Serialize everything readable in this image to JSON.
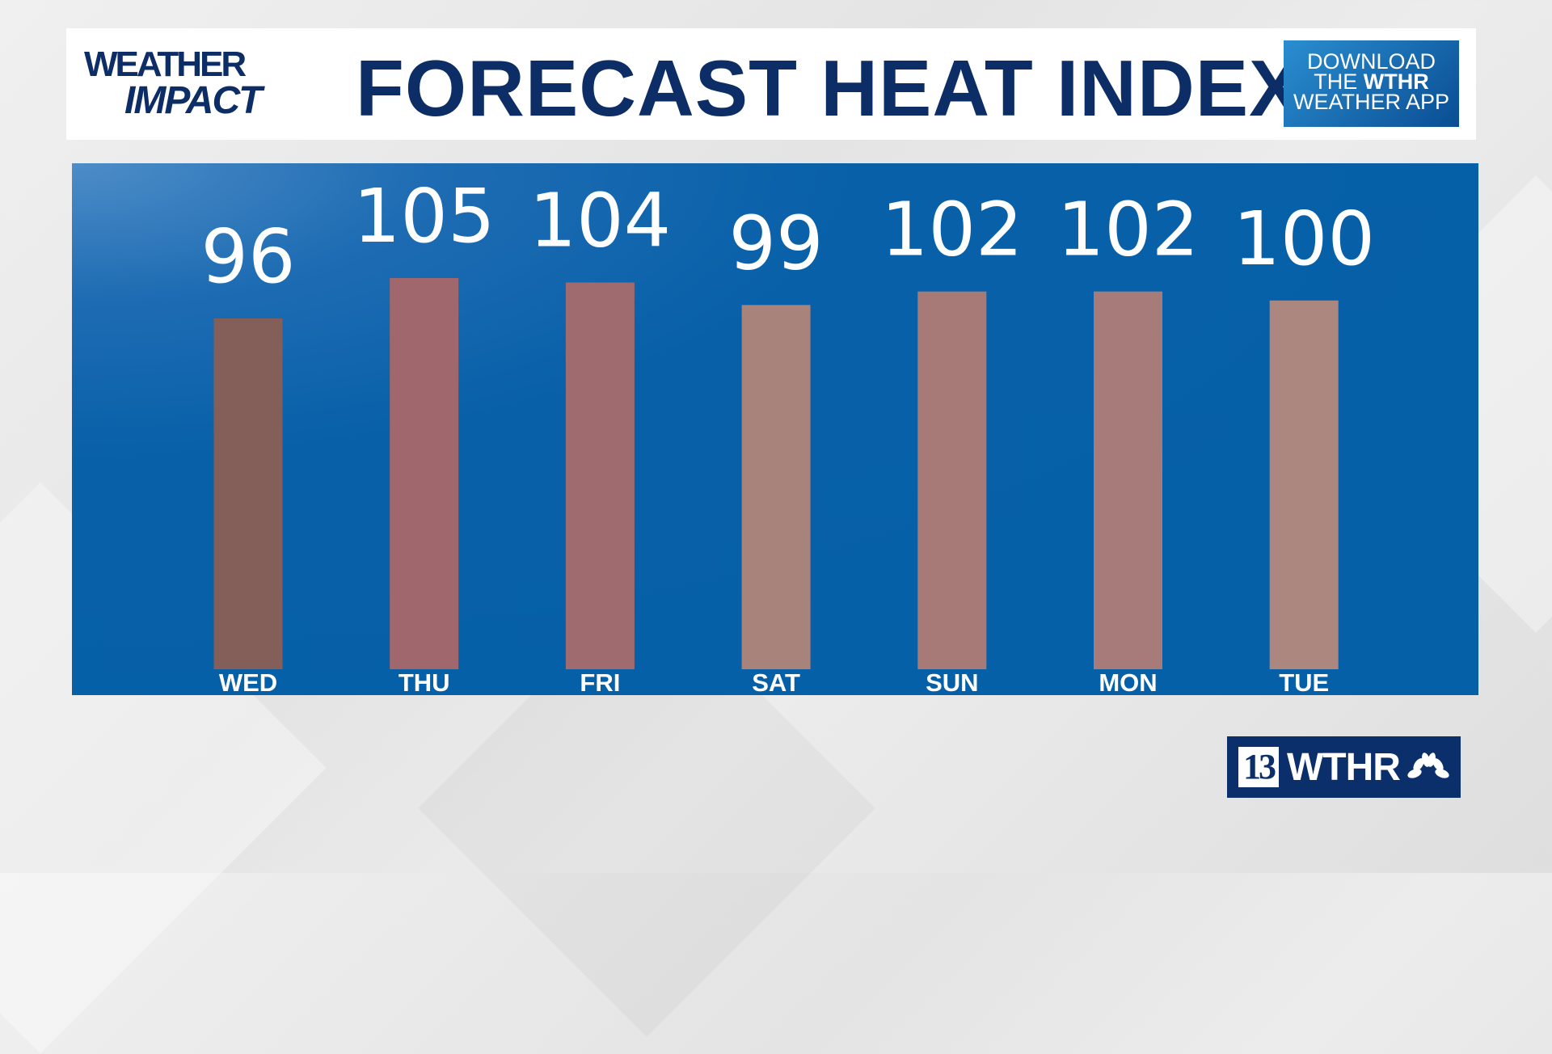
{
  "header": {
    "logo_line1": "WEATHER",
    "logo_line2": "IMPACT",
    "title": "FORECAST HEAT INDEX",
    "download": {
      "line1": "DOWNLOAD",
      "line2a": "THE ",
      "line2b": "WTHR",
      "line3": "WEATHER APP"
    }
  },
  "branding": {
    "channel": "13",
    "station": "WTHR",
    "network_icon": "peacock-icon"
  },
  "colors": {
    "panel": "#0660a8",
    "title": "#0c2d66"
  },
  "chart_data": {
    "type": "bar",
    "title": "FORECAST HEAT INDEX",
    "categories": [
      "WED",
      "THU",
      "FRI",
      "SAT",
      "SUN",
      "MON",
      "TUE"
    ],
    "values": [
      96,
      105,
      104,
      99,
      102,
      102,
      100
    ],
    "value_labels": [
      "96",
      "105",
      "104",
      "99",
      "102",
      "102",
      "100"
    ],
    "bar_colors": [
      "#845f5a",
      "#a0676c",
      "#a06b6e",
      "#a8837b",
      "#a77a78",
      "#a77b7a",
      "#ab877f"
    ],
    "grid": false,
    "axes_visible": false
  }
}
